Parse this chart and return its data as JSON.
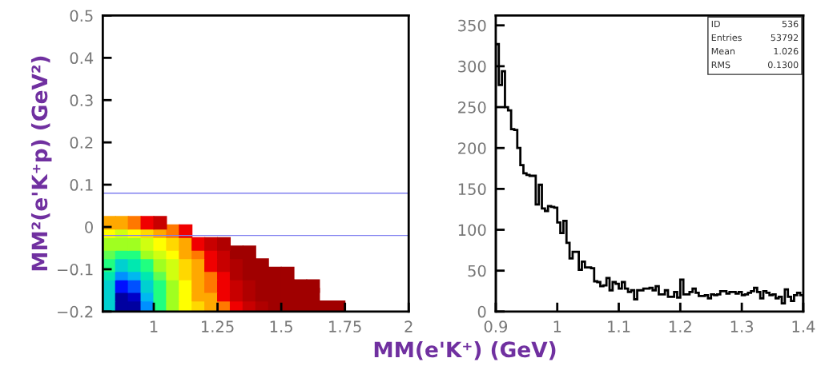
{
  "chart_data": [
    {
      "type": "scatter",
      "marker": "square",
      "ylabel": "MM²(e'K⁺p) (GeV²)",
      "series": [
        {
          "x": [
            0.825,
            0.875,
            0.925,
            0.975,
            1.025,
            1.075,
            1.125,
            1.175,
            1.225,
            1.275,
            1.325,
            1.375,
            1.425,
            1.475,
            1.525,
            1.575,
            1.625,
            1.675,
            1.725
          ],
          "values": [
            -0.19,
            -0.19,
            -0.19,
            -0.19,
            -0.19,
            -0.19,
            -0.19,
            -0.19,
            -0.19,
            -0.19,
            -0.19,
            -0.19,
            -0.19,
            -0.19,
            -0.19,
            -0.19,
            -0.19,
            -0.19,
            -0.19
          ],
          "colors": [
            "#00d0d0",
            "#0000a0",
            "#0000a0",
            "#0090ff",
            "#20ff80",
            "#a0ff20",
            "#ffff00",
            "#ffd800",
            "#ffa800",
            "#ff7800",
            "#f00000",
            "#c80000",
            "#b00000",
            "#a00000",
            "#a00000",
            "#a00000",
            "#a00000",
            "#a00000",
            "#a00000"
          ]
        },
        {
          "x": [
            0.825,
            0.875,
            0.925,
            0.975,
            1.025,
            1.075,
            1.125,
            1.175,
            1.225,
            1.275,
            1.325,
            1.375,
            1.425,
            1.475,
            1.525,
            1.575,
            1.625
          ],
          "values": [
            -0.16,
            -0.16,
            -0.16,
            -0.16,
            -0.16,
            -0.16,
            -0.16,
            -0.16,
            -0.16,
            -0.16,
            -0.16,
            -0.16,
            -0.16,
            -0.16,
            -0.16,
            -0.16,
            -0.16
          ],
          "colors": [
            "#00d0d0",
            "#0000a0",
            "#0000c8",
            "#00b8f0",
            "#20ff80",
            "#a0ff20",
            "#ffff00",
            "#ffa800",
            "#ffa800",
            "#f00000",
            "#c80000",
            "#b00000",
            "#a00000",
            "#a00000",
            "#a00000",
            "#a00000",
            "#a00000"
          ]
        },
        {
          "x": [
            0.825,
            0.875,
            0.925,
            0.975,
            1.025,
            1.075,
            1.125,
            1.175,
            1.225,
            1.275,
            1.325,
            1.375,
            1.425,
            1.475,
            1.525,
            1.575,
            1.625
          ],
          "values": [
            -0.14,
            -0.14,
            -0.14,
            -0.14,
            -0.14,
            -0.14,
            -0.14,
            -0.14,
            -0.14,
            -0.14,
            -0.14,
            -0.14,
            -0.14,
            -0.14,
            -0.14,
            -0.14,
            -0.14
          ],
          "colors": [
            "#00d0d0",
            "#0010ff",
            "#0050ff",
            "#00d0d0",
            "#20ff80",
            "#a0ff20",
            "#ffff00",
            "#ffa800",
            "#ff7800",
            "#f00000",
            "#c80000",
            "#b00000",
            "#a00000",
            "#a00000",
            "#a00000",
            "#a00000",
            "#a00000"
          ]
        },
        {
          "x": [
            0.825,
            0.875,
            0.925,
            0.975,
            1.025,
            1.075,
            1.125,
            1.175,
            1.225,
            1.275,
            1.325,
            1.375,
            1.425,
            1.475,
            1.525
          ],
          "values": [
            -0.11,
            -0.11,
            -0.11,
            -0.11,
            -0.11,
            -0.11,
            -0.11,
            -0.11,
            -0.11,
            -0.11,
            -0.11,
            -0.11,
            -0.11,
            -0.11,
            -0.11
          ],
          "colors": [
            "#00e8b0",
            "#0090ff",
            "#00b8f0",
            "#00e8b0",
            "#60ff50",
            "#d0ff10",
            "#ffd800",
            "#ffa800",
            "#ff7800",
            "#f00000",
            "#b00000",
            "#a00000",
            "#a00000",
            "#a00000",
            "#a00000"
          ]
        },
        {
          "x": [
            0.825,
            0.875,
            0.925,
            0.975,
            1.025,
            1.075,
            1.125,
            1.175,
            1.225,
            1.275,
            1.325,
            1.375,
            1.425
          ],
          "values": [
            -0.09,
            -0.09,
            -0.09,
            -0.09,
            -0.09,
            -0.09,
            -0.09,
            -0.09,
            -0.09,
            -0.09,
            -0.09,
            -0.09,
            -0.09
          ],
          "colors": [
            "#20ff80",
            "#00d0d0",
            "#00e8b0",
            "#20ff80",
            "#a0ff20",
            "#d0ff10",
            "#ffd800",
            "#ffa800",
            "#f00000",
            "#c80000",
            "#b00000",
            "#a00000",
            "#a00000"
          ]
        },
        {
          "x": [
            0.825,
            0.875,
            0.925,
            0.975,
            1.025,
            1.075,
            1.125,
            1.175,
            1.225,
            1.275,
            1.325,
            1.375
          ],
          "values": [
            -0.06,
            -0.06,
            -0.06,
            -0.06,
            -0.06,
            -0.06,
            -0.06,
            -0.06,
            -0.06,
            -0.06,
            -0.06,
            -0.06
          ],
          "colors": [
            "#60ff50",
            "#20ff80",
            "#20ff80",
            "#a0ff20",
            "#d0ff10",
            "#ffff00",
            "#ffa800",
            "#ff7800",
            "#f00000",
            "#c80000",
            "#a00000",
            "#a00000"
          ]
        },
        {
          "x": [
            0.825,
            0.875,
            0.925,
            0.975,
            1.025,
            1.075,
            1.125,
            1.175,
            1.225,
            1.275
          ],
          "values": [
            -0.04,
            -0.04,
            -0.04,
            -0.04,
            -0.04,
            -0.04,
            -0.04,
            -0.04,
            -0.04,
            -0.04
          ],
          "colors": [
            "#a0ff20",
            "#a0ff20",
            "#a0ff20",
            "#d0ff10",
            "#ffff00",
            "#ffd800",
            "#ffa800",
            "#f00000",
            "#c80000",
            "#b00000"
          ]
        },
        {
          "x": [
            0.825,
            0.875,
            0.925,
            0.975,
            1.025,
            1.075,
            1.125
          ],
          "values": [
            -0.01,
            -0.01,
            -0.01,
            -0.01,
            -0.01,
            -0.01,
            -0.01
          ],
          "colors": [
            "#ffff00",
            "#d0ff10",
            "#ffff00",
            "#ffd800",
            "#ffa800",
            "#ff7800",
            "#f00000"
          ]
        },
        {
          "x": [
            0.825,
            0.875,
            0.925,
            0.975,
            1.025
          ],
          "values": [
            0.01,
            0.01,
            0.01,
            0.01,
            0.01
          ],
          "colors": [
            "#ffa800",
            "#ffa800",
            "#ff7800",
            "#f00000",
            "#c80000"
          ]
        }
      ],
      "xlim": [
        0.8,
        2
      ],
      "xticks": [
        1,
        1.25,
        1.5,
        1.75,
        2
      ],
      "ylim": [
        -0.2,
        0.5
      ],
      "yticks": [
        {
          "value": -0.2,
          "label": "−0.2"
        },
        {
          "value": -0.1,
          "label": "−0.1"
        },
        0,
        0.1,
        0.2,
        0.3,
        0.4,
        0.5
      ],
      "ref_lines": [
        {
          "axis": "y",
          "value": 0.08,
          "color": "#8080f0"
        },
        {
          "axis": "y",
          "value": -0.02,
          "color": "#8080f0"
        }
      ]
    },
    {
      "type": "histogram",
      "xlabel": "MM(e'K⁺) (GeV)",
      "bins": [
        0.9,
        0.905,
        0.91,
        0.915,
        0.92,
        0.925,
        0.93,
        0.935,
        0.94,
        0.945,
        0.95,
        0.955,
        0.96,
        0.965,
        0.97,
        0.975,
        0.98,
        0.985,
        0.99,
        0.995,
        1.0,
        1.005,
        1.01,
        1.015,
        1.02,
        1.025,
        1.03,
        1.035,
        1.04,
        1.045,
        1.05,
        1.055,
        1.06,
        1.065,
        1.07,
        1.075,
        1.08,
        1.085,
        1.09,
        1.095,
        1.1,
        1.105,
        1.11,
        1.115,
        1.12,
        1.125,
        1.13,
        1.135,
        1.14,
        1.145,
        1.15,
        1.155,
        1.16,
        1.165,
        1.17,
        1.175,
        1.18,
        1.185,
        1.19,
        1.195,
        1.2,
        1.205,
        1.21,
        1.215,
        1.22,
        1.225,
        1.23,
        1.235,
        1.24,
        1.245,
        1.25,
        1.255,
        1.26,
        1.265,
        1.27,
        1.275,
        1.28,
        1.285,
        1.29,
        1.295,
        1.3,
        1.305,
        1.31,
        1.315,
        1.32,
        1.325,
        1.33,
        1.335,
        1.34,
        1.345,
        1.35,
        1.355,
        1.36,
        1.365,
        1.37,
        1.375,
        1.38,
        1.385,
        1.39,
        1.395,
        1.4
      ],
      "values": [
        327,
        277,
        294,
        250,
        246,
        223,
        222,
        200,
        179,
        169,
        167,
        166,
        166,
        131,
        155,
        126,
        123,
        129,
        128,
        127,
        109,
        96,
        111,
        84,
        65,
        73,
        73,
        51,
        61,
        54,
        54,
        53,
        37,
        36,
        31,
        32,
        41,
        26,
        36,
        34,
        28,
        36,
        28,
        24,
        26,
        15,
        26,
        26,
        28,
        28,
        29,
        26,
        31,
        21,
        21,
        26,
        18,
        18,
        24,
        17,
        39,
        21,
        21,
        24,
        28,
        23,
        19,
        19,
        20,
        16,
        21,
        20,
        21,
        25,
        25,
        22,
        24,
        24,
        22,
        24,
        20,
        21,
        23,
        25,
        29,
        24,
        16,
        25,
        23,
        20,
        21,
        16,
        18,
        10,
        27,
        18,
        13,
        20,
        23,
        20
      ],
      "color": "#000000",
      "xlim": [
        0.9,
        1.4
      ],
      "xticks": [
        0.9,
        {
          "value": 1.0,
          "label": "1"
        },
        1.1,
        1.2,
        1.3,
        1.4
      ],
      "ylim": [
        0,
        362
      ],
      "yticks": [
        0,
        50,
        100,
        150,
        200,
        250,
        300,
        350
      ],
      "annotations": [
        "ID",
        "536",
        "Entries",
        "53792",
        "Mean",
        "1.026",
        "RMS",
        "0.1300"
      ]
    }
  ]
}
